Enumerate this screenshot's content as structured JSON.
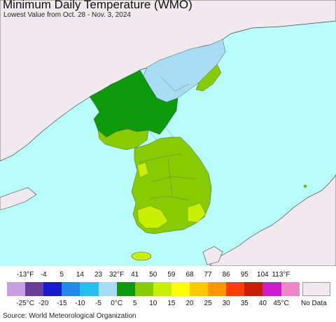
{
  "header": {
    "title": "Minimum Daily Temperature (WMO)",
    "subtitle": "Lowest Value from Oct. 28 - Nov. 3, 2024"
  },
  "legend": {
    "f_ticks": [
      "-13°F",
      "-4",
      "5",
      "14",
      "23",
      "32°F",
      "41",
      "50",
      "59",
      "68",
      "77",
      "86",
      "95",
      "104",
      "113°F"
    ],
    "c_ticks": [
      "-25°C",
      "-20",
      "-15",
      "-10",
      "-5",
      "0°C",
      "5",
      "10",
      "15",
      "20",
      "25",
      "30",
      "35",
      "40",
      "45°C"
    ],
    "colors": [
      "#c89ee0",
      "#6a3d9a",
      "#1a1ad0",
      "#2288ee",
      "#22c0f0",
      "#a8dcf4",
      "#0a9a0a",
      "#86cc00",
      "#c8ee00",
      "#ffff00",
      "#ffc800",
      "#ff9600",
      "#ff3c00",
      "#c81e00",
      "#d01ad0",
      "#ee86c8"
    ],
    "no_data_label": "No Data"
  },
  "footer": {
    "source": "Source: World Meteorological Organization"
  },
  "colors": {
    "sea": "#b8fcfc",
    "no_data_land": "#f0eaee",
    "coast": "#444444"
  }
}
